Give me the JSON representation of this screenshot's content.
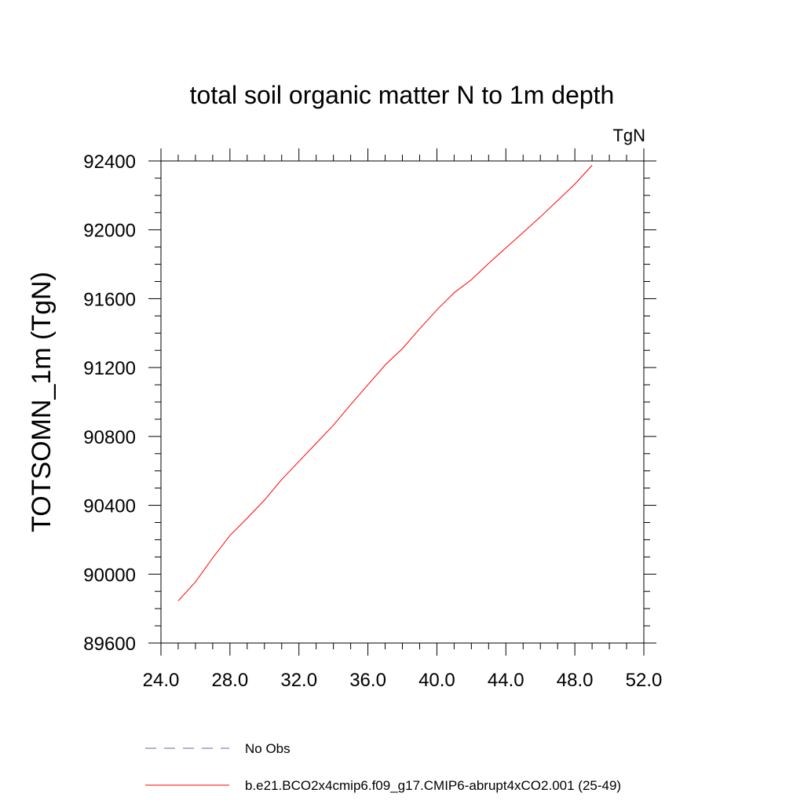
{
  "chart_data": {
    "type": "line",
    "title": "total soil organic matter N to 1m depth",
    "units_label": "TgN",
    "xlabel": "",
    "ylabel": "TOTSOMN_1m  (TgN)",
    "xlim": [
      24.0,
      52.0
    ],
    "ylim": [
      89600,
      92400
    ],
    "x_ticks": [
      "24.0",
      "28.0",
      "32.0",
      "36.0",
      "40.0",
      "44.0",
      "48.0",
      "52.0"
    ],
    "y_ticks": [
      "89600",
      "90000",
      "90400",
      "90800",
      "91200",
      "91600",
      "92000",
      "92400"
    ],
    "grid": false,
    "legend_position": "bottom",
    "series": [
      {
        "name": "No Obs",
        "color": "#6b5fb5",
        "dash": "dashed",
        "x": [],
        "y": []
      },
      {
        "name": "b.e21.BCO2x4cmip6.f09_g17.CMIP6-abrupt4xCO2.001 (25-49)",
        "color": "#ff0000",
        "dash": "solid",
        "x": [
          25,
          26,
          27,
          28,
          29,
          30,
          31,
          32,
          33,
          34,
          35,
          36,
          37,
          38,
          39,
          40,
          41,
          42,
          43,
          44,
          45,
          46,
          47,
          48,
          49
        ],
        "y": [
          89845,
          89955,
          90095,
          90225,
          90325,
          90430,
          90550,
          90655,
          90760,
          90865,
          90985,
          91100,
          91215,
          91310,
          91425,
          91535,
          91635,
          91710,
          91805,
          91895,
          91985,
          92075,
          92170,
          92265,
          92375
        ]
      }
    ]
  }
}
